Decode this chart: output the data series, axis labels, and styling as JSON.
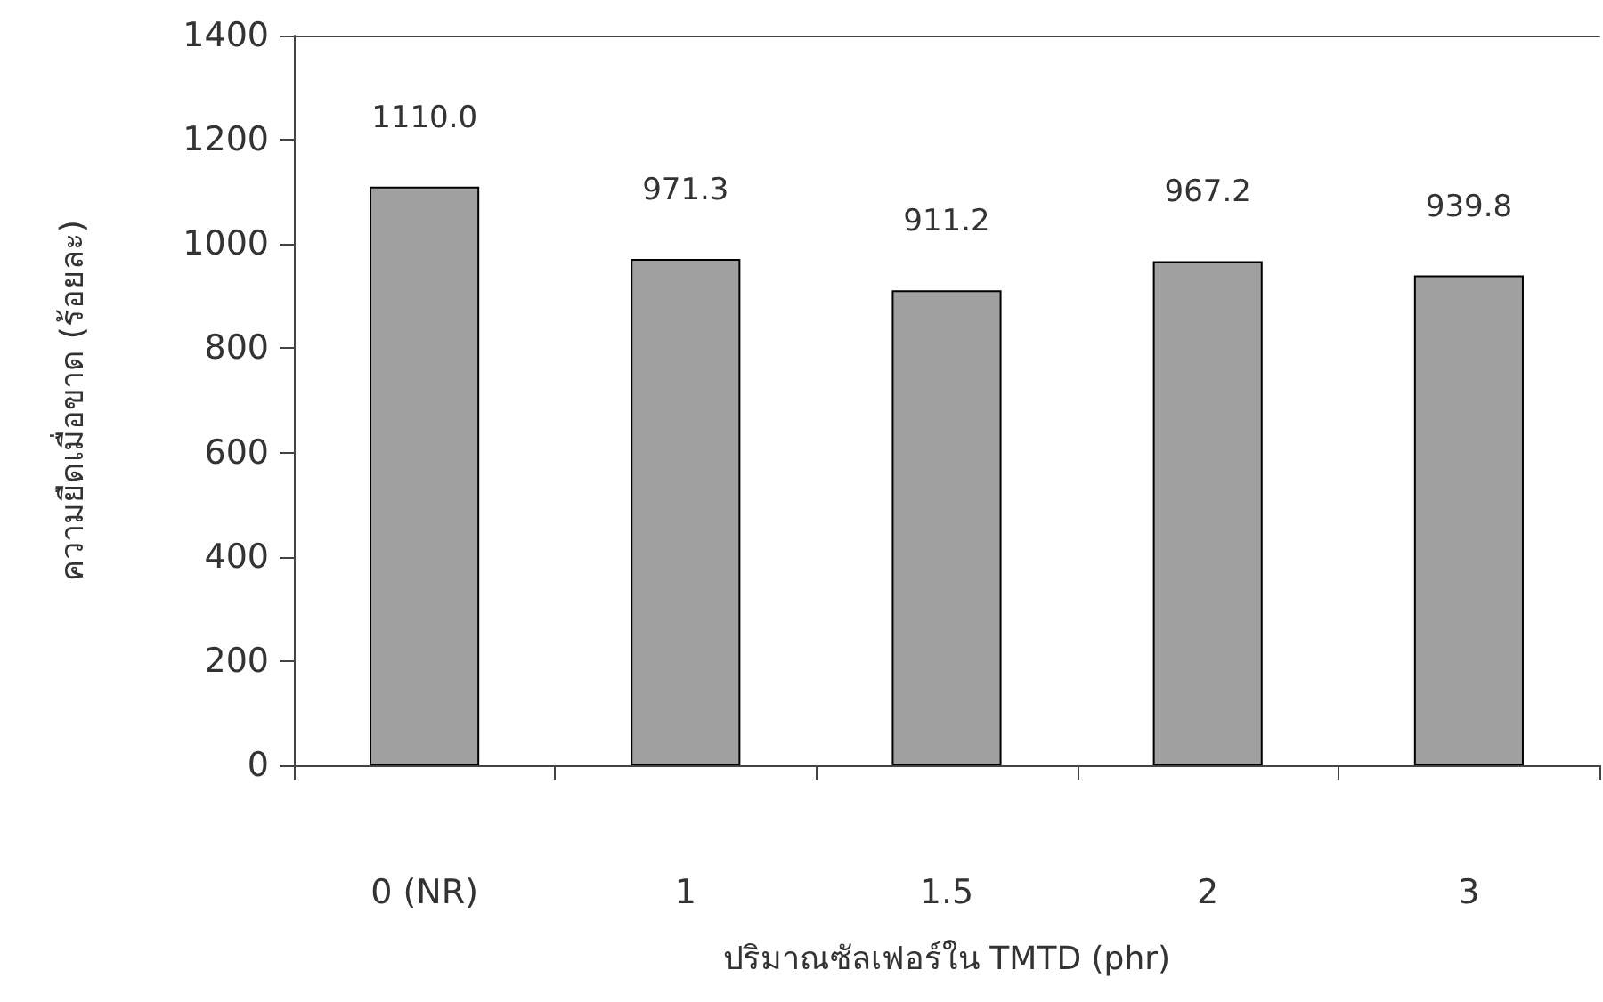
{
  "chart_data": {
    "type": "bar",
    "xlabel": "ปริมาณซัลเฟอร์ใน TMTD (phr)",
    "ylabel": "ความยืดเมื่อขาด (ร้อยละ)",
    "categories": [
      "0 (NR)",
      "1",
      "1.5",
      "2",
      "3"
    ],
    "values": [
      1110.0,
      971.3,
      911.2,
      967.2,
      939.8
    ],
    "color": "#a0a0a0",
    "ylim": [
      0,
      1400
    ],
    "yticks": [
      0,
      200,
      400,
      600,
      800,
      1000,
      1200,
      1400
    ],
    "value_labels": [
      "1110.0",
      "971.3",
      "911.2",
      "967.2",
      "939.8"
    ],
    "grid": false
  }
}
